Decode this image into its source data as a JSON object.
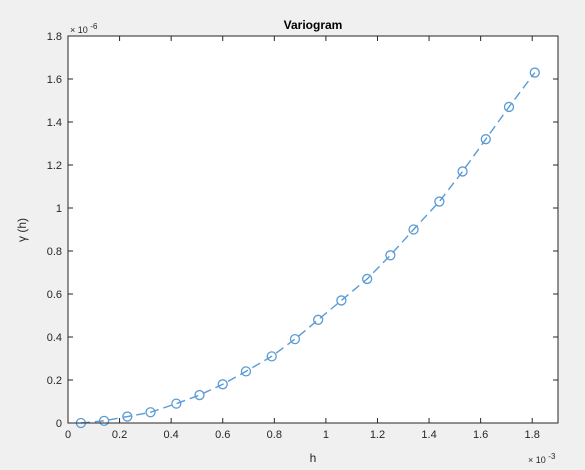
{
  "chart_data": {
    "type": "line",
    "title": "Variogram",
    "xlabel": "h",
    "ylabel": "γ (h)",
    "x_exponent_label": "× 10",
    "x_exponent_power": "-3",
    "y_exponent_label": "× 10",
    "y_exponent_power": "-6",
    "xlim": [
      0,
      1.9
    ],
    "ylim": [
      0,
      1.8
    ],
    "x_ticks": [
      0,
      0.2,
      0.4,
      0.6,
      0.8,
      1,
      1.2,
      1.4,
      1.6,
      1.8
    ],
    "x_tick_labels": [
      "0",
      "0.2",
      "0.4",
      "0.6",
      "0.8",
      "1",
      "1.2",
      "1.4",
      "1.6",
      "1.8"
    ],
    "y_ticks": [
      0,
      0.2,
      0.4,
      0.6,
      0.8,
      1,
      1.2,
      1.4,
      1.6,
      1.8
    ],
    "y_tick_labels": [
      "0",
      "0.2",
      "0.4",
      "0.6",
      "0.8",
      "1",
      "1.2",
      "1.4",
      "1.6",
      "1.8"
    ],
    "grid": false,
    "line_style": "dashed",
    "marker": "circle",
    "series_color": "#5b9bd5",
    "series": [
      {
        "x": [
          0.05,
          0.14,
          0.23,
          0.32,
          0.42,
          0.51,
          0.6,
          0.69,
          0.79,
          0.88,
          0.97,
          1.06,
          1.16,
          1.25,
          1.34,
          1.44,
          1.53,
          1.62,
          1.71,
          1.81
        ],
        "y": [
          0.0,
          0.01,
          0.03,
          0.05,
          0.09,
          0.13,
          0.18,
          0.24,
          0.31,
          0.39,
          0.48,
          0.57,
          0.67,
          0.78,
          0.9,
          1.03,
          1.17,
          1.32,
          1.47,
          1.63
        ]
      }
    ]
  }
}
